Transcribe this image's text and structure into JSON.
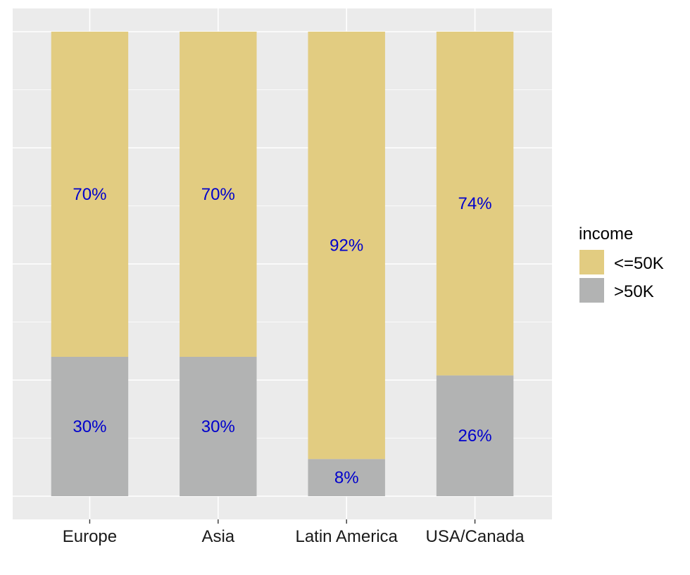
{
  "chart_data": {
    "type": "bar",
    "stacked": true,
    "normalized": true,
    "categories": [
      "Europe",
      "Asia",
      "Latin America",
      "USA/Canada"
    ],
    "series": [
      {
        "name": "<=50K",
        "values": [
          70,
          70,
          92,
          74
        ],
        "labels": [
          "70%",
          "70%",
          "92%",
          "74%"
        ],
        "color": "#e2cc81"
      },
      {
        "name": ">50K",
        "values": [
          30,
          30,
          8,
          26
        ],
        "labels": [
          "30%",
          "30%",
          "8%",
          "26%"
        ],
        "color": "#b2b3b3"
      }
    ],
    "ylim": [
      -5,
      105
    ],
    "grid": true,
    "legend": {
      "title": "income",
      "position": "right"
    },
    "colors": {
      "panel": "#ebebeb",
      "grid": "#ffffff",
      "label": "#0000cc"
    }
  }
}
